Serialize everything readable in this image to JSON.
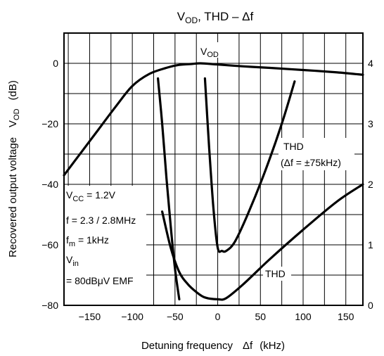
{
  "chart_data": {
    "type": "line",
    "title": {
      "main": "V",
      "sub": "OD",
      "rest": ", THD – Δf"
    },
    "xlabel": {
      "text": "Detuning frequency",
      "symbol": "Δf",
      "unit": "(kHz)"
    },
    "ylabel_left": {
      "text": "Recovered output voltage",
      "symbol_main": "V",
      "symbol_sub": "OD",
      "unit": "(dB)"
    },
    "xlim": [
      -180,
      170
    ],
    "ylim_left": [
      -80,
      10
    ],
    "ylim_right": [
      0,
      4.5
    ],
    "x_ticks": [
      -150,
      -100,
      -50,
      0,
      50,
      100,
      150
    ],
    "y_ticks_left": [
      0,
      -20,
      -40,
      -60,
      -80
    ],
    "y_ticks_right": [
      4,
      3,
      2,
      1,
      0
    ],
    "grid": true,
    "series": [
      {
        "name": "VOD",
        "label_main": "V",
        "label_sub": "OD",
        "axis": "left",
        "x": [
          -180,
          -160,
          -140,
          -120,
          -100,
          -80,
          -60,
          -45,
          -30,
          -20,
          0,
          30,
          60,
          100,
          140,
          170
        ],
        "y": [
          -37,
          -29.5,
          -22,
          -14.5,
          -7.5,
          -3.5,
          -1.5,
          -0.5,
          -0.2,
          0,
          -0.4,
          -1,
          -1.5,
          -2.2,
          -3,
          -3.8
        ]
      },
      {
        "name": "THD",
        "label": "THD",
        "axis": "right",
        "x": [
          -65,
          -55,
          -45,
          -35,
          -25,
          -15,
          0,
          10,
          30,
          60,
          100,
          140,
          170
        ],
        "y": [
          1.55,
          0.95,
          0.55,
          0.35,
          0.22,
          0.13,
          0.1,
          0.12,
          0.35,
          0.75,
          1.25,
          1.72,
          2.0
        ]
      },
      {
        "name": "THD (Δf = ±75kHz), left branch",
        "axis": "right",
        "x": [
          -70,
          -65,
          -60,
          -55,
          -50,
          -45
        ],
        "y": [
          3.75,
          3.0,
          2.1,
          1.3,
          0.6,
          0.1
        ]
      },
      {
        "name": "THD (Δf = ±75kHz), right branch",
        "axis": "right",
        "x": [
          -15,
          -10,
          -5,
          0,
          5,
          10,
          20,
          35,
          55,
          75,
          90
        ],
        "y": [
          3.75,
          2.6,
          1.6,
          0.95,
          0.9,
          0.9,
          1.05,
          1.5,
          2.2,
          3.0,
          3.7
        ]
      }
    ],
    "annotations": {
      "thd_wide_label": [
        "THD",
        "(Δf = ±75kHz)"
      ],
      "conditions": [
        {
          "main": "V",
          "sub": "CC",
          "rest": " = 1.2V"
        },
        {
          "main": "f = 2.3 / 2.8MHz",
          "sub": "",
          "rest": ""
        },
        {
          "main": "f",
          "sub": "m",
          "rest": " = 1kHz"
        },
        {
          "main": "V",
          "sub": "in",
          "rest": ""
        },
        {
          "main": "= 80dBμV EMF",
          "sub": "",
          "rest": ""
        }
      ]
    }
  }
}
